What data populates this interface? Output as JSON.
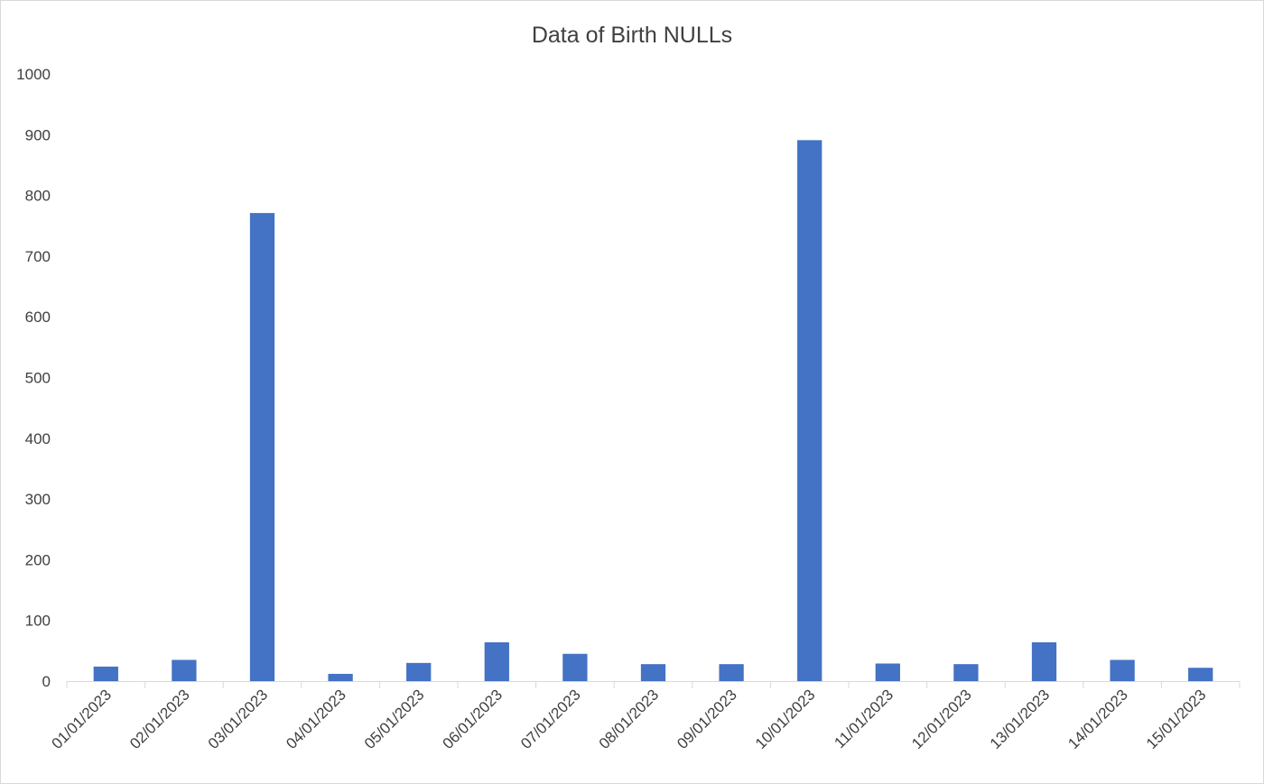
{
  "chart_data": {
    "type": "bar",
    "title": "Data of Birth NULLs",
    "xlabel": "",
    "ylabel": "",
    "categories": [
      "01/01/2023",
      "02/01/2023",
      "03/01/2023",
      "04/01/2023",
      "05/01/2023",
      "06/01/2023",
      "07/01/2023",
      "08/01/2023",
      "09/01/2023",
      "10/01/2023",
      "11/01/2023",
      "12/01/2023",
      "13/01/2023",
      "14/01/2023",
      "15/01/2023"
    ],
    "values": [
      24,
      35,
      771,
      12,
      30,
      64,
      45,
      28,
      28,
      891,
      29,
      28,
      64,
      35,
      22
    ],
    "ylim": [
      0,
      1000
    ],
    "yticks": [
      "0",
      "100",
      "200",
      "300",
      "400",
      "500",
      "600",
      "700",
      "800",
      "900",
      "1000"
    ],
    "grid": false,
    "legend": "none",
    "bar_color": "#4472c4"
  }
}
